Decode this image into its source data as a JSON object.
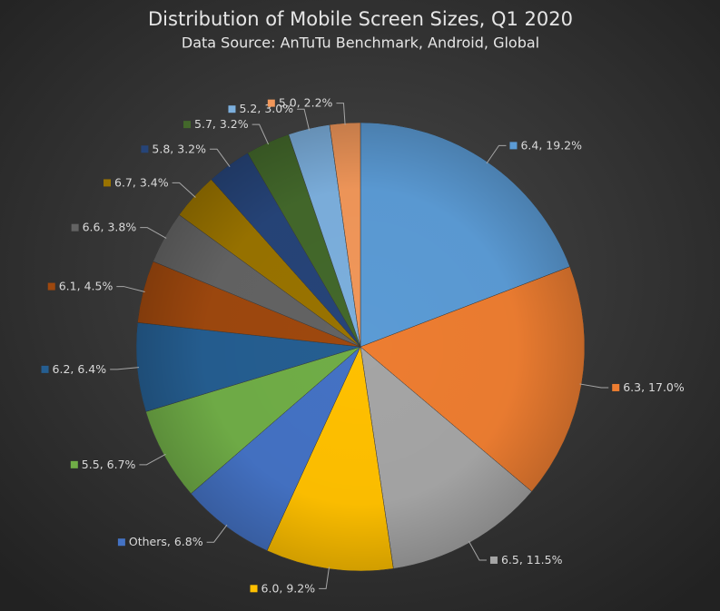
{
  "chart_data": {
    "type": "pie",
    "title": "Distribution of Mobile Screen Sizes, Q1 2020",
    "subtitle": "Data Source: AnTuTu Benchmark, Android, Global",
    "categories": [
      "6.4",
      "6.3",
      "6.5",
      "6.0",
      "Others",
      "5.5",
      "6.2",
      "6.1",
      "6.6",
      "6.7",
      "5.8",
      "5.7",
      "5.2",
      "5.0"
    ],
    "values": [
      19.2,
      17.0,
      11.5,
      9.2,
      6.8,
      6.7,
      6.4,
      4.5,
      3.8,
      3.4,
      3.2,
      3.2,
      3.0,
      2.2
    ],
    "value_labels": [
      "19.2%",
      "17.0%",
      "11.5%",
      "9.2%",
      "6.8%",
      "6.7%",
      "6.4%",
      "4.5%",
      "3.8%",
      "3.4%",
      "3.2%",
      "3.2%",
      "3.0%",
      "2.2%"
    ],
    "colors": [
      "#5b9bd5",
      "#ed7d31",
      "#a5a5a5",
      "#ffc000",
      "#4472c4",
      "#70ad47",
      "#255e91",
      "#9e480e",
      "#636363",
      "#997300",
      "#264478",
      "#43682b",
      "#7cafdd",
      "#f1975a"
    ]
  }
}
